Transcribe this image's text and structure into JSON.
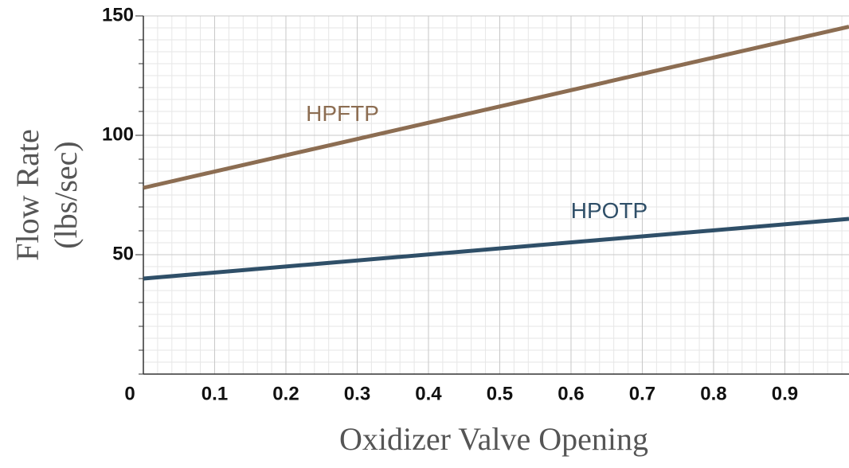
{
  "chart_data": {
    "type": "line",
    "xlabel": "Oxidizer Valve Opening",
    "ylabel": [
      "Flow Rate",
      "(lbs/sec)"
    ],
    "x": [
      0,
      0.99
    ],
    "series": [
      {
        "name": "HPFTP",
        "color": "#8c6d52",
        "values": [
          78,
          145.5
        ]
      },
      {
        "name": "HPOTP",
        "color": "#2f4f68",
        "values": [
          40,
          65
        ]
      }
    ],
    "xlim": [
      0,
      0.99
    ],
    "xticks": [
      0,
      0.1,
      0.2,
      0.3,
      0.4,
      0.5,
      0.6,
      0.7,
      0.8,
      0.9
    ],
    "ylim": [
      0,
      150
    ],
    "yticks": [
      50,
      100,
      150
    ],
    "grid": true,
    "minor_grid": {
      "x": 5,
      "y": 10
    }
  }
}
